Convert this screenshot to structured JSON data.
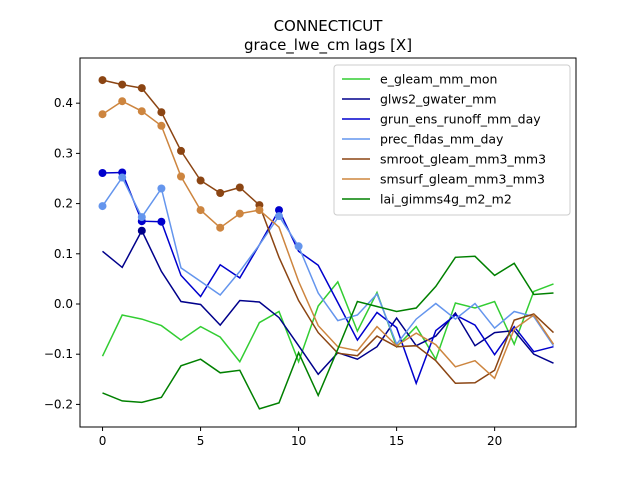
{
  "chart_data": {
    "type": "line",
    "title": "CONNECTICUT",
    "subtitle": "grace_lwe_cm lags [X]",
    "xlabel": "",
    "ylabel": "",
    "xlim": [
      -1.15,
      24.15
    ],
    "ylim": [
      -0.245,
      0.49
    ],
    "xticks": [
      0,
      5,
      10,
      15,
      20
    ],
    "yticks": [
      -0.2,
      -0.1,
      0.0,
      0.1,
      0.2,
      0.3,
      0.4
    ],
    "ytick_labels": [
      "−0.2",
      "−0.1",
      "0.0",
      "0.1",
      "0.2",
      "0.3",
      "0.4"
    ],
    "grid": false,
    "legend_position": "upper right",
    "x": [
      0,
      1,
      2,
      3,
      4,
      5,
      6,
      7,
      8,
      9,
      10,
      11,
      12,
      13,
      14,
      15,
      16,
      17,
      18,
      19,
      20,
      21,
      22,
      23
    ],
    "series": [
      {
        "name": "e_gleam_mm_mon",
        "color": "#32cd32",
        "values": [
          -0.104,
          -0.022,
          -0.03,
          -0.043,
          -0.072,
          -0.045,
          -0.066,
          -0.115,
          -0.037,
          -0.015,
          -0.115,
          -0.004,
          0.044,
          -0.054,
          0.023,
          -0.085,
          -0.045,
          -0.11,
          0.002,
          -0.008,
          0.005,
          -0.08,
          0.025,
          0.04
        ],
        "markers": []
      },
      {
        "name": "glws2_gwater_mm",
        "color": "#00008b",
        "values": [
          0.105,
          0.073,
          0.146,
          0.065,
          0.005,
          -0.001,
          -0.042,
          0.007,
          0.004,
          -0.027,
          -0.083,
          -0.14,
          -0.097,
          -0.11,
          -0.085,
          -0.028,
          -0.083,
          -0.064,
          -0.018,
          -0.083,
          -0.057,
          -0.053,
          -0.1,
          -0.118
        ],
        "markers": [
          2
        ]
      },
      {
        "name": "grun_ens_runoff_mm_day",
        "color": "#0000cd",
        "values": [
          0.261,
          0.262,
          0.165,
          0.164,
          0.057,
          0.015,
          0.078,
          0.052,
          0.118,
          0.187,
          0.105,
          0.077,
          0.003,
          -0.072,
          -0.017,
          -0.047,
          -0.158,
          -0.053,
          -0.022,
          -0.042,
          -0.101,
          -0.045,
          -0.095,
          -0.085
        ],
        "markers": [
          0,
          1,
          2,
          3,
          9
        ]
      },
      {
        "name": "prec_fldas_mm_day",
        "color": "#6495ed",
        "values": [
          0.195,
          0.252,
          0.173,
          0.23,
          0.072,
          0.045,
          0.018,
          0.065,
          0.118,
          0.175,
          0.115,
          0.022,
          -0.033,
          -0.022,
          0.02,
          -0.08,
          -0.03,
          0.001,
          -0.03,
          0.001,
          -0.048,
          -0.015,
          -0.025,
          -0.083
        ],
        "markers": [
          0,
          1,
          2,
          3,
          9,
          10
        ]
      },
      {
        "name": "smroot_gleam_mm3_mm3",
        "color": "#8b4513",
        "values": [
          0.446,
          0.437,
          0.43,
          0.382,
          0.305,
          0.246,
          0.221,
          0.232,
          0.197,
          0.093,
          0.007,
          -0.057,
          -0.098,
          -0.103,
          -0.064,
          -0.085,
          -0.083,
          -0.113,
          -0.158,
          -0.157,
          -0.132,
          -0.032,
          -0.02,
          -0.057
        ],
        "markers": [
          0,
          1,
          2,
          3,
          4,
          5,
          6,
          7,
          8
        ]
      },
      {
        "name": "smsurf_gleam_mm3_mm3",
        "color": "#cd853f",
        "values": [
          0.378,
          0.404,
          0.384,
          0.355,
          0.254,
          0.187,
          0.152,
          0.18,
          0.187,
          0.153,
          0.045,
          -0.043,
          -0.085,
          -0.093,
          -0.045,
          -0.083,
          -0.058,
          -0.081,
          -0.125,
          -0.113,
          -0.148,
          -0.05,
          -0.022,
          -0.08
        ],
        "markers": [
          0,
          1,
          2,
          3,
          4,
          5,
          6,
          7,
          8
        ]
      },
      {
        "name": "lai_gimms4g_m2_m2",
        "color": "#008000",
        "values": [
          -0.177,
          -0.193,
          -0.196,
          -0.186,
          -0.123,
          -0.11,
          -0.137,
          -0.132,
          -0.209,
          -0.197,
          -0.097,
          -0.182,
          -0.09,
          0.005,
          -0.005,
          -0.015,
          -0.008,
          0.035,
          0.093,
          0.095,
          0.057,
          0.081,
          0.019,
          0.022
        ],
        "markers": []
      }
    ]
  }
}
